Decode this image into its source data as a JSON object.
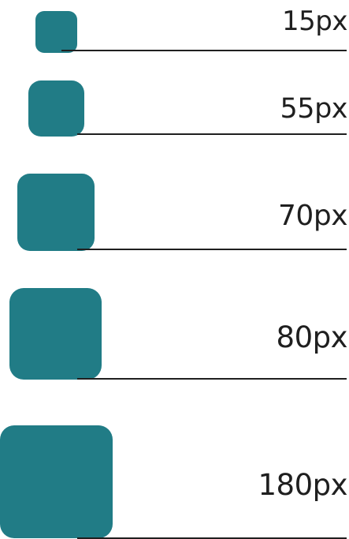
{
  "accent_color": "#217c86",
  "rule_color": "#1f1f1f",
  "rows": [
    {
      "label": "15px"
    },
    {
      "label": "55px"
    },
    {
      "label": "70px"
    },
    {
      "label": "80px"
    },
    {
      "label": "180px"
    }
  ]
}
